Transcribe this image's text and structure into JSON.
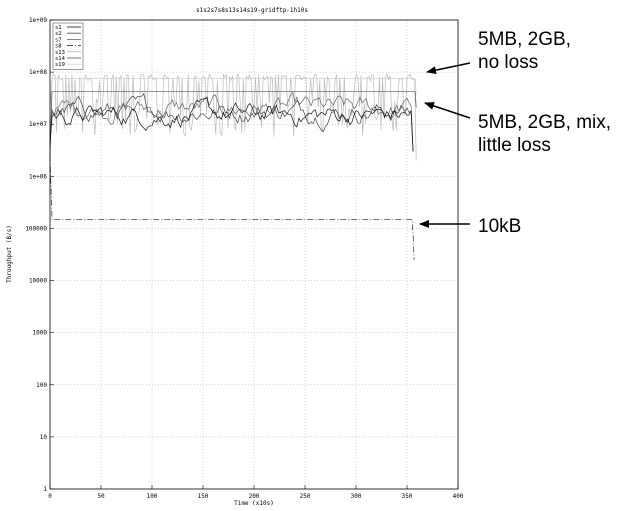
{
  "chart_data": {
    "type": "line",
    "title": "s1s2s7s8s13s14s19-gridftp-1h10s",
    "xlabel": "Time (x10s)",
    "ylabel": "Throughput (B/s)",
    "xlim": [
      0,
      400
    ],
    "ylim": [
      1,
      1000000000
    ],
    "yscale": "log",
    "grid": true,
    "legend_position": "top-left",
    "x_ticks": [
      "0",
      "50",
      "100",
      "150",
      "200",
      "250",
      "300",
      "350",
      "400"
    ],
    "y_ticks": [
      "1",
      "10",
      "100",
      "1000",
      "10000",
      "100000",
      "1e+06",
      "1e+07",
      "1e+08",
      "1e+09"
    ],
    "series": [
      {
        "name": "s1",
        "pattern": "noisy",
        "level": 15000000,
        "amp": 0.85,
        "end": 355,
        "color": "#111111",
        "dash": ""
      },
      {
        "name": "s2",
        "pattern": "noisy",
        "level": 18000000,
        "amp": 0.8,
        "end": 355,
        "color": "#444444",
        "dash": ""
      },
      {
        "name": "s7",
        "pattern": "noisy",
        "level": 20000000,
        "amp": 0.7,
        "end": 355,
        "color": "#666666",
        "dash": ""
      },
      {
        "name": "s8",
        "pattern": "flat",
        "level": 150000,
        "end": 355,
        "color": "#222222",
        "dash": "6,2,1,2"
      },
      {
        "name": "s13",
        "pattern": "spiky",
        "level": 80000000,
        "end": 358,
        "color": "#bbbbbb",
        "dash": ""
      },
      {
        "name": "s14",
        "pattern": "flat",
        "level": 42000000,
        "end": 358,
        "color": "#555555",
        "dash": ""
      },
      {
        "name": "s19",
        "pattern": "flat",
        "level": 75000000,
        "end": 358,
        "color": "#d0d0d0",
        "dash": ""
      }
    ],
    "annotations": [
      {
        "lines": [
          "5MB, 2GB,",
          "no loss"
        ],
        "target_x": 370,
        "target_y": 80000000
      },
      {
        "lines": [
          "5MB, 2GB, mix,",
          "little loss"
        ],
        "target_x": 370,
        "target_y": 35000000
      },
      {
        "lines": [
          "10kB"
        ],
        "target_x": 363,
        "target_y": 150000
      }
    ]
  }
}
